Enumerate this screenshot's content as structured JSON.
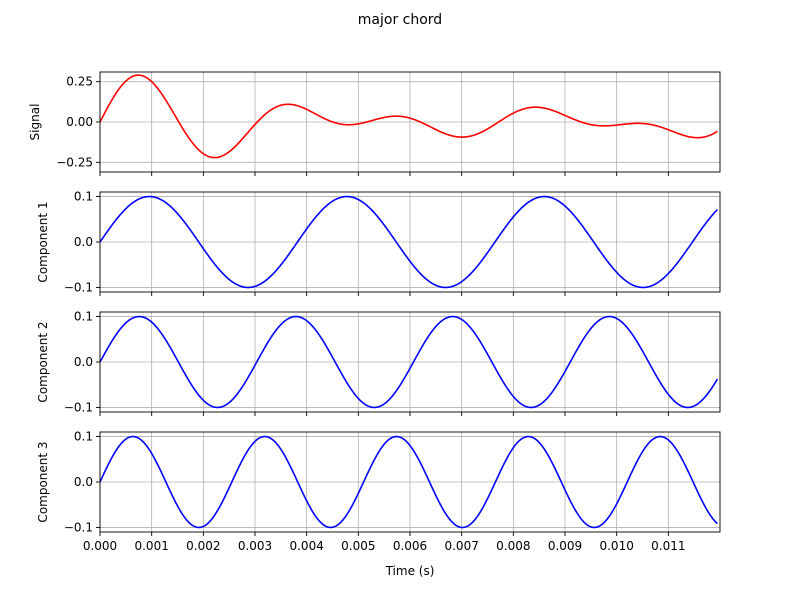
{
  "chart_data": {
    "type": "line",
    "title": "major chord",
    "xlabel": "Time (s)",
    "x_range": [
      0,
      0.012
    ],
    "x_ticks": [
      "0.000",
      "0.001",
      "0.002",
      "0.003",
      "0.004",
      "0.005",
      "0.006",
      "0.007",
      "0.008",
      "0.009",
      "0.010",
      "0.011"
    ],
    "grid": true,
    "panels": [
      {
        "ylabel": "Signal",
        "color": "#ff0000",
        "ylim": [
          -0.31,
          0.31
        ],
        "y_ticks": [
          "0.25",
          "0.00",
          "−0.25"
        ],
        "y_tick_values": [
          0.25,
          0.0,
          -0.25
        ],
        "series": {
          "type": "sum",
          "components": [
            {
              "amplitude": 0.1,
              "frequency_hz": 261.63
            },
            {
              "amplitude": 0.1,
              "frequency_hz": 329.63
            },
            {
              "amplitude": 0.1,
              "frequency_hz": 392.0
            }
          ]
        }
      },
      {
        "ylabel": "Component 1",
        "color": "#0000ff",
        "ylim": [
          -0.11,
          0.11
        ],
        "y_ticks": [
          "0.1",
          "0.0",
          "−0.1"
        ],
        "y_tick_values": [
          0.1,
          0.0,
          -0.1
        ],
        "series": {
          "type": "sine",
          "amplitude": 0.1,
          "frequency_hz": 261.63
        }
      },
      {
        "ylabel": "Component 2",
        "color": "#0000ff",
        "ylim": [
          -0.11,
          0.11
        ],
        "y_ticks": [
          "0.1",
          "0.0",
          "−0.1"
        ],
        "y_tick_values": [
          0.1,
          0.0,
          -0.1
        ],
        "series": {
          "type": "sine",
          "amplitude": 0.1,
          "frequency_hz": 329.63
        }
      },
      {
        "ylabel": "Component 3",
        "color": "#0000ff",
        "ylim": [
          -0.11,
          0.11
        ],
        "y_ticks": [
          "0.1",
          "0.0",
          "−0.1"
        ],
        "y_tick_values": [
          0.1,
          0.0,
          -0.1
        ],
        "series": {
          "type": "sine",
          "amplitude": 0.1,
          "frequency_hz": 392.0
        }
      }
    ]
  }
}
